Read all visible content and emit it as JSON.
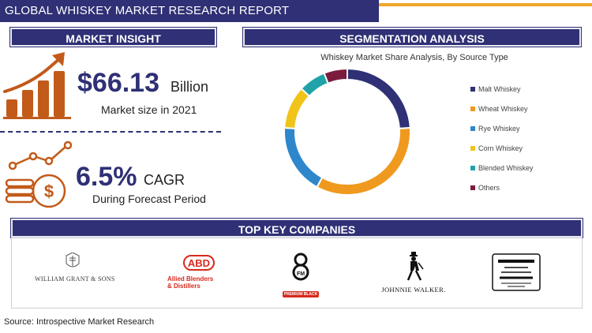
{
  "header": {
    "title": "GLOBAL WHISKEY MARKET RESEARCH REPORT"
  },
  "insight": {
    "heading": "MARKET INSIGHT",
    "market_value": "$66.13",
    "market_unit": "Billion",
    "market_caption": "Market size in 2021",
    "cagr_value": "6.5%",
    "cagr_label": "CAGR",
    "cagr_caption": "During Forecast Period"
  },
  "segmentation": {
    "heading": "SEGMENTATION ANALYSIS"
  },
  "chart_data": {
    "type": "pie",
    "style": "donut",
    "title": "Whiskey Market Share Analysis, By Source Type",
    "labels": [
      "Malt Whiskey",
      "Wheat Whiskey",
      "Rye Whiskey",
      "Corn Whiskey",
      "Blended Whiskey",
      "Others"
    ],
    "values": [
      24,
      34,
      18,
      11,
      7,
      6
    ],
    "colors": [
      "#2f3075",
      "#ef9a1e",
      "#2e87cb",
      "#f0c419",
      "#1fa3a9",
      "#7b1c3e"
    ],
    "legend": "right",
    "start_angle_deg": 0,
    "direction": "clockwise"
  },
  "companies": {
    "heading": "TOP KEY COMPANIES",
    "william_grant": "WILLIAM GRANT & SONS",
    "allied_mark": "ABD",
    "allied_name_line1": "Allied Blenders",
    "allied_name_line2": "& Distillers",
    "fm_badge": "PREMIUM BLACK",
    "fm_mark": "FM",
    "johnnie_walker": "JOHNNIE WALKER."
  },
  "footer": {
    "source": "Source: Introspective Market Research"
  },
  "icons": [
    "growth-chart-icon",
    "coin-growth-icon"
  ]
}
